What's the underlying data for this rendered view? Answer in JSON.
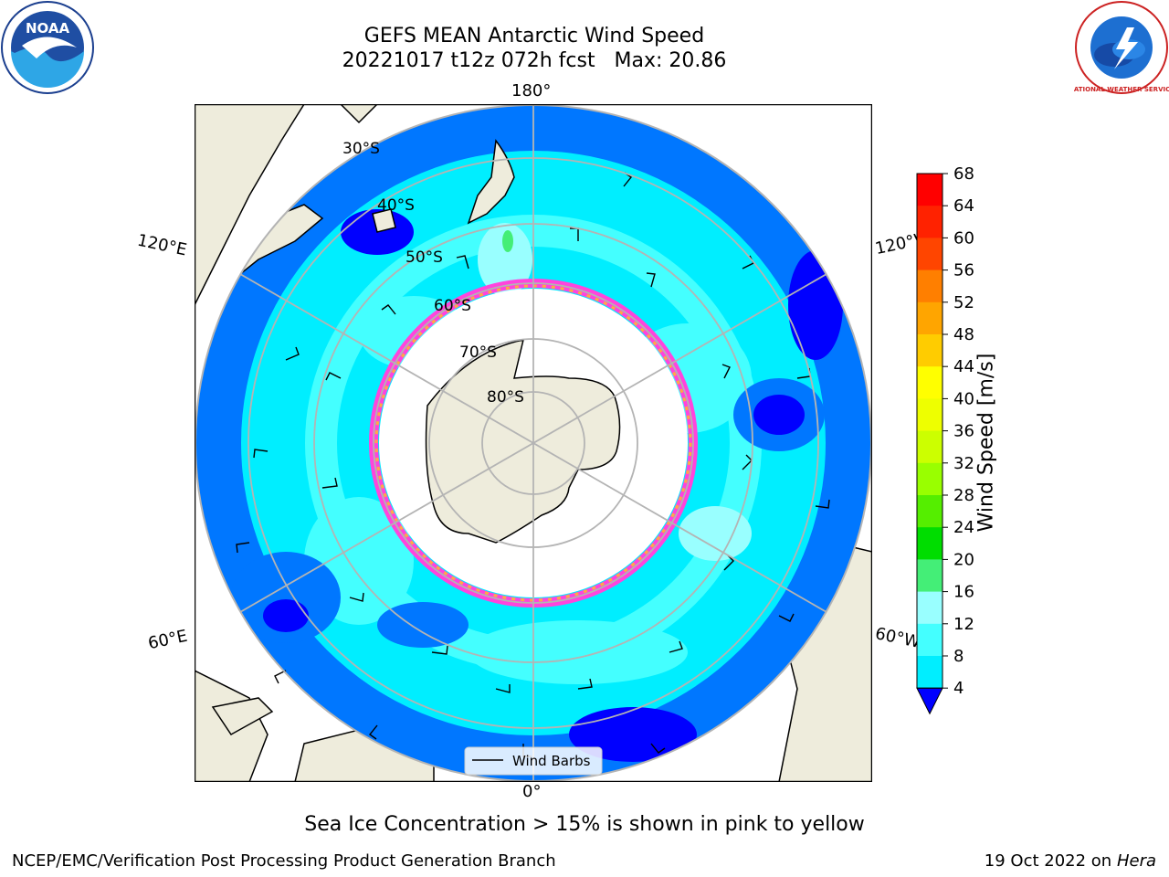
{
  "title": {
    "line1": "GEFS MEAN Antarctic Wind Speed",
    "line2": "20221017 t12z 072h fcst   Max: 20.86"
  },
  "logos": {
    "left": "noaa-logo",
    "right": "national-weather-service-logo",
    "left_text": "NOAA",
    "right_text": "NATIONAL WEATHER SERVICE"
  },
  "map": {
    "projection": "south-polar-stereographic",
    "longitude_labels": {
      "top": "180°",
      "bottom": "0°",
      "left_upper": "120°E",
      "right_upper": "120°W",
      "left_lower": "60°E",
      "right_lower": "60°W"
    },
    "latitude_labels": [
      "30°S",
      "40°S",
      "50°S",
      "60°S",
      "70°S",
      "80°S"
    ],
    "legend_label": "Wind Barbs",
    "colors": {
      "land": "#eeecdc",
      "ocean_sea_ice_free": "#ffffff",
      "gridline": "#b4b4b4"
    }
  },
  "colorbar": {
    "label": "Wind Speed [m/s]",
    "ticks": [
      "4",
      "8",
      "12",
      "16",
      "20",
      "24",
      "28",
      "32",
      "36",
      "40",
      "44",
      "48",
      "52",
      "56",
      "60",
      "64",
      "68"
    ],
    "colors": [
      "#0000ff",
      "#0077ff",
      "#00eeff",
      "#44ffff",
      "#99ffff",
      "#44ee77",
      "#00dd00",
      "#55ee00",
      "#99ff00",
      "#ccff00",
      "#eeff00",
      "#ffff00",
      "#ffcc00",
      "#ffa500",
      "#ff7f00",
      "#ff4500",
      "#ff2200",
      "#ff0000"
    ]
  },
  "note": "Sea Ice Concentration > 15% is shown in pink to yellow",
  "footer": {
    "credit": "NCEP/EMC/Verification Post Processing Product Generation Branch",
    "date": "19 Oct 2022 on ",
    "host": "Hera"
  }
}
